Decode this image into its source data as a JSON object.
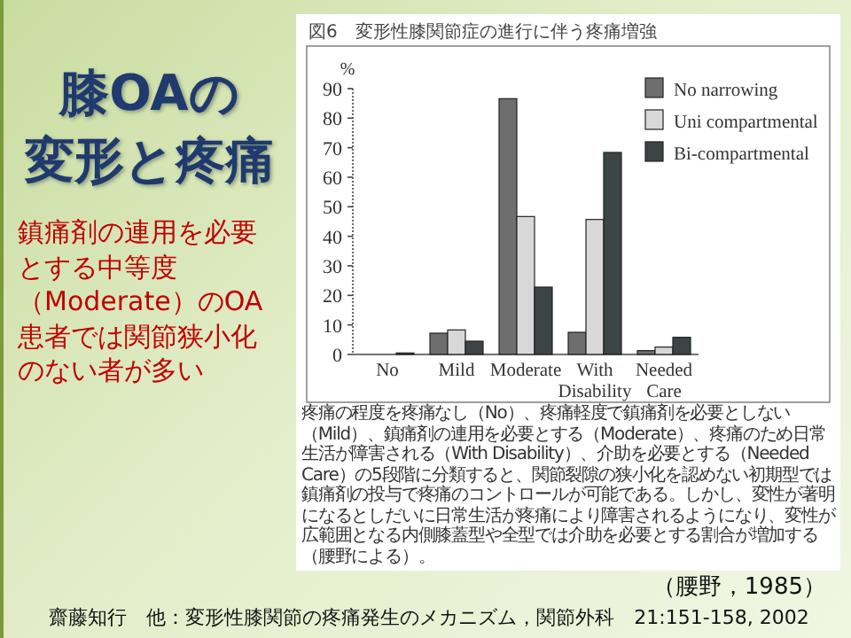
{
  "chart_data": {
    "type": "bar",
    "title": "図6　変形性膝関節症の進行に伴う疼痛増強",
    "ylabel": "%",
    "categories": [
      "No",
      "Mild",
      "Moderate",
      "With Disability",
      "Needed Care"
    ],
    "series": [
      {
        "name": "No narrowing",
        "color": "#6e6e6e",
        "values": [
          0,
          7.2,
          86.6,
          7.5,
          1.3
        ]
      },
      {
        "name": "Uni compartmental",
        "color": "#d8d8d8",
        "values": [
          0,
          8.3,
          46.7,
          45.7,
          2.5
        ]
      },
      {
        "name": "Bi-compartmental",
        "color": "#3c4444",
        "values": [
          0.5,
          4.5,
          22.8,
          68.4,
          5.8
        ]
      }
    ],
    "ylim": [
      0,
      90
    ],
    "yticks": [
      0,
      10,
      20,
      30,
      40,
      50,
      60,
      70,
      80,
      90
    ],
    "legend": "top right",
    "annotations": [
      "膝OAの",
      "変形と疼痛",
      "鎮痛剤の連用を必要とする中等度（Moderate）のOA患者では関節狭小化のない者が多い",
      "疼痛の程度を疼痛なし（No）、疼痛軽度で鎮痛剤を必要としない（Mild）、鎮痛剤の連用を必要とする（Moderate）、疼痛のため日常生活が障害される（With Disability）、介助を必要とする（Needed Care）の5段階に分類すると、関節裂隙の狭小化を認めない初期型では鎮痛剤の投与で疼痛のコントロールが可能である。しかし、変性が著明になるとしだいに日常生活が疼痛により障害されるようになり、変性が広範囲となる内側膝蓋型や全型では介助を必要とする割合が増加する（腰野による）。",
      "（腰野，1985）",
      "齋藤知行　他：変形性膝関節の疼痛発生のメカニズム，関節外科　21:151-158, 2002"
    ]
  }
}
